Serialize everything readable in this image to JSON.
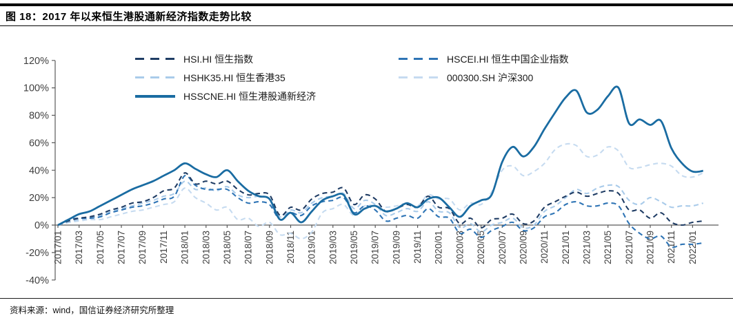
{
  "header": {
    "title": "图 18：2017 年以来恒生港股通新经济指数走势比较"
  },
  "footer": {
    "source": "资料来源：wind，国信证券经济研究所整理"
  },
  "chart_data": {
    "type": "line",
    "title": "2017 年以来恒生港股通新经济指数走势比较",
    "xlabel": "",
    "ylabel": "",
    "x_start": "2017/01",
    "x_end": "2022/02",
    "x_freq": "monthly",
    "n_points": 62,
    "grid": false,
    "legend_position": "top",
    "ylim": [
      -40,
      120
    ],
    "y_ticks": [
      120,
      100,
      80,
      60,
      40,
      20,
      0,
      -20,
      -40
    ],
    "y_tick_suffix": "%",
    "x_tick_labels": [
      "2017/01",
      "2017/03",
      "2017/05",
      "2017/07",
      "2017/09",
      "2017/11",
      "2018/01",
      "2018/03",
      "2018/05",
      "2018/07",
      "2018/09",
      "2018/11",
      "2019/01",
      "2019/03",
      "2019/05",
      "2019/07",
      "2019/09",
      "2019/11",
      "2020/01",
      "2020/03",
      "2020/05",
      "2020/07",
      "2020/09",
      "2020/11",
      "2021/01",
      "2021/03",
      "2021/05",
      "2021/07",
      "2021/09",
      "2021/11",
      "2022/01"
    ],
    "series": [
      {
        "id": "hsi",
        "name": "HSI.HI 恒生指数",
        "color": "#1F3C64",
        "style": "dashed",
        "values": [
          0,
          3,
          5,
          6,
          8,
          11,
          13,
          16,
          17,
          20,
          25,
          27,
          38,
          30,
          32,
          30,
          32,
          26,
          22,
          23,
          22,
          7,
          13,
          11,
          19,
          23,
          24,
          27,
          15,
          22,
          19,
          10,
          12,
          15,
          13,
          21,
          13,
          12,
          1,
          5,
          -2,
          4,
          5,
          8,
          1,
          3,
          13,
          17,
          21,
          24,
          21,
          23,
          25,
          23,
          11,
          11,
          5,
          9,
          2,
          0,
          2,
          3
        ]
      },
      {
        "id": "hscei",
        "name": "HSCEI.HI 恒生中国企业指数",
        "color": "#2E74B5",
        "style": "dashed",
        "values": [
          0,
          4,
          5,
          5,
          6,
          9,
          11,
          13,
          14,
          16,
          19,
          21,
          36,
          29,
          26,
          26,
          26,
          20,
          16,
          17,
          15,
          4,
          9,
          7,
          14,
          17,
          18,
          20,
          9,
          14,
          11,
          3,
          5,
          7,
          5,
          12,
          6,
          5,
          -6,
          -3,
          -9,
          -4,
          -1,
          2,
          -4,
          -2,
          6,
          9,
          15,
          17,
          14,
          14,
          16,
          14,
          1,
          -6,
          -10,
          -8,
          -16,
          -14,
          -14,
          -13
        ]
      },
      {
        "id": "hshk35",
        "name": "HSHK35.HI 恒生香港35",
        "color": "#A9CBEA",
        "style": "dashed",
        "values": [
          0,
          2,
          4,
          5,
          7,
          10,
          12,
          14,
          16,
          18,
          21,
          23,
          32,
          26,
          27,
          25,
          28,
          22,
          20,
          21,
          19,
          6,
          11,
          9,
          16,
          20,
          21,
          23,
          12,
          18,
          15,
          7,
          9,
          12,
          10,
          17,
          10,
          9,
          -2,
          1,
          -5,
          0,
          2,
          5,
          -2,
          0,
          10,
          14,
          20,
          26,
          23,
          27,
          29,
          28,
          18,
          15,
          20,
          17,
          13,
          14,
          14,
          16
        ]
      },
      {
        "id": "csi300",
        "name": "000300.SH 沪深300",
        "color": "#C6DBF0",
        "style": "dashed",
        "values": [
          0,
          2,
          3,
          4,
          4,
          6,
          8,
          10,
          11,
          13,
          15,
          17,
          27,
          20,
          16,
          11,
          13,
          4,
          5,
          -1,
          2,
          -7,
          -6,
          -10,
          -5,
          9,
          12,
          15,
          7,
          14,
          14,
          13,
          14,
          16,
          14,
          22,
          19,
          19,
          11,
          16,
          15,
          24,
          40,
          43,
          36,
          39,
          45,
          55,
          59,
          58,
          50,
          51,
          57,
          54,
          42,
          42,
          44,
          45,
          43,
          36,
          35,
          38
        ]
      },
      {
        "id": "hsscne",
        "name": "HSSCNE.HI 恒生港股通新经济",
        "color": "#1A6CA2",
        "style": "solid",
        "values": [
          0,
          4,
          8,
          10,
          14,
          18,
          22,
          26,
          29,
          32,
          36,
          40,
          45,
          41,
          37,
          35,
          40,
          32,
          25,
          21,
          19,
          4,
          9,
          2,
          10,
          18,
          21,
          22,
          8,
          12,
          14,
          10,
          12,
          16,
          13,
          19,
          20,
          13,
          6,
          14,
          18,
          22,
          46,
          57,
          50,
          57,
          70,
          82,
          93,
          98,
          82,
          84,
          94,
          100,
          74,
          77,
          73,
          76,
          56,
          45,
          39,
          39.5
        ]
      }
    ]
  }
}
